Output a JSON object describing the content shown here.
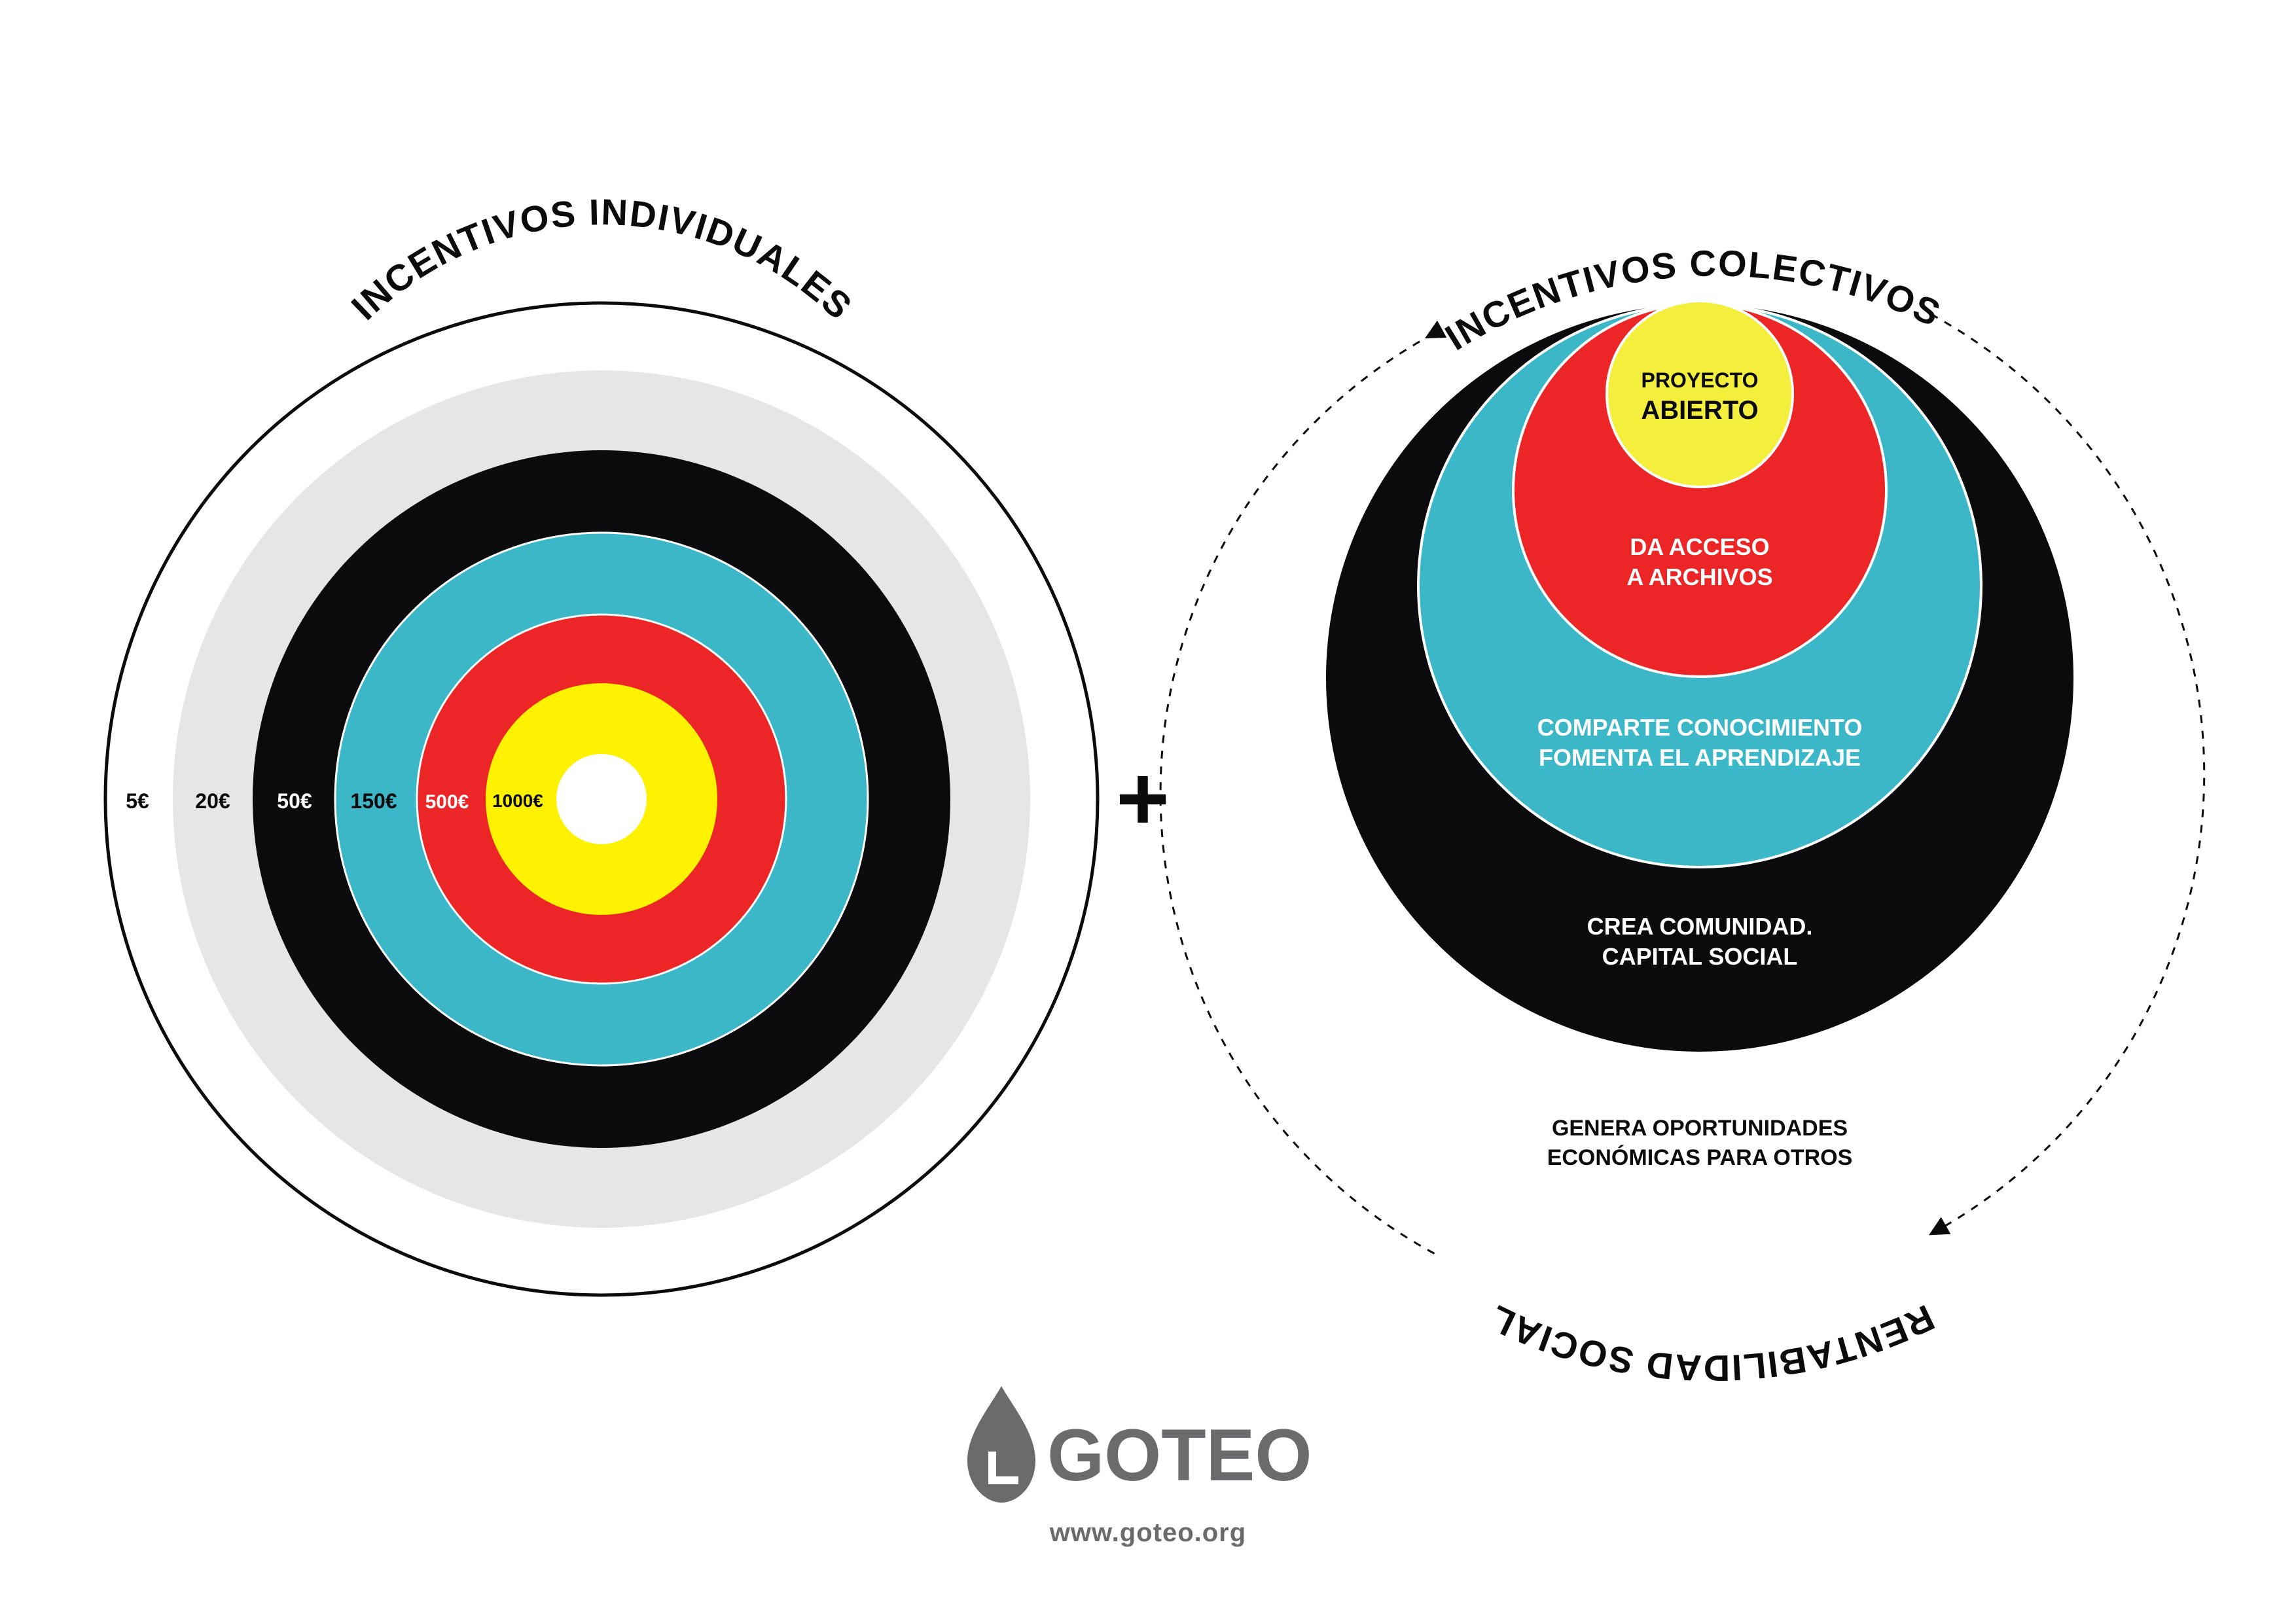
{
  "individual": {
    "title": "INCENTIVOS INDIVIDUALES",
    "rings": [
      {
        "label": "5€",
        "color": "#ffffff",
        "text_color": "#0b0b0d"
      },
      {
        "label": "20€",
        "color": "#e6e6e7",
        "text_color": "#0b0b0d"
      },
      {
        "label": "50€",
        "color": "#0b0b0d",
        "text_color": "#ffffff"
      },
      {
        "label": "150€",
        "color": "#3bb7c8",
        "text_color": "#0b0b0d"
      },
      {
        "label": "500€",
        "color": "#ec2626",
        "text_color": "#ffffff"
      },
      {
        "label": "1000€",
        "color": "#fff200",
        "text_color": "#0b0b0d"
      }
    ]
  },
  "plus": "+",
  "collective": {
    "title": "INCENTIVOS COLECTIVOS",
    "bottom_title": "RENTABILIDAD SOCIAL",
    "circles": {
      "black": {
        "line1": "CREA COMUNIDAD.",
        "line2": "CAPITAL SOCIAL",
        "color": "#0b0b0d"
      },
      "teal": {
        "line1": "COMPARTE CONOCIMIENTO",
        "line2": "FOMENTA EL APRENDIZAJE",
        "color": "#3bb7c8"
      },
      "red": {
        "line1": "DA ACCESO",
        "line2": "A ARCHIVOS",
        "color": "#ec2626"
      },
      "yellow": {
        "line1": "PROYECTO",
        "line2": "ABIERTO",
        "color": "#f4ee3c"
      }
    },
    "outer_text": {
      "line1": "GENERA OPORTUNIDADES",
      "line2": "ECONÓMICAS PARA OTROS"
    }
  },
  "brand": {
    "name": "GOTEO",
    "url": "www.goteo.org",
    "color": "#6b6b6e",
    "icon": "drop-icon"
  }
}
